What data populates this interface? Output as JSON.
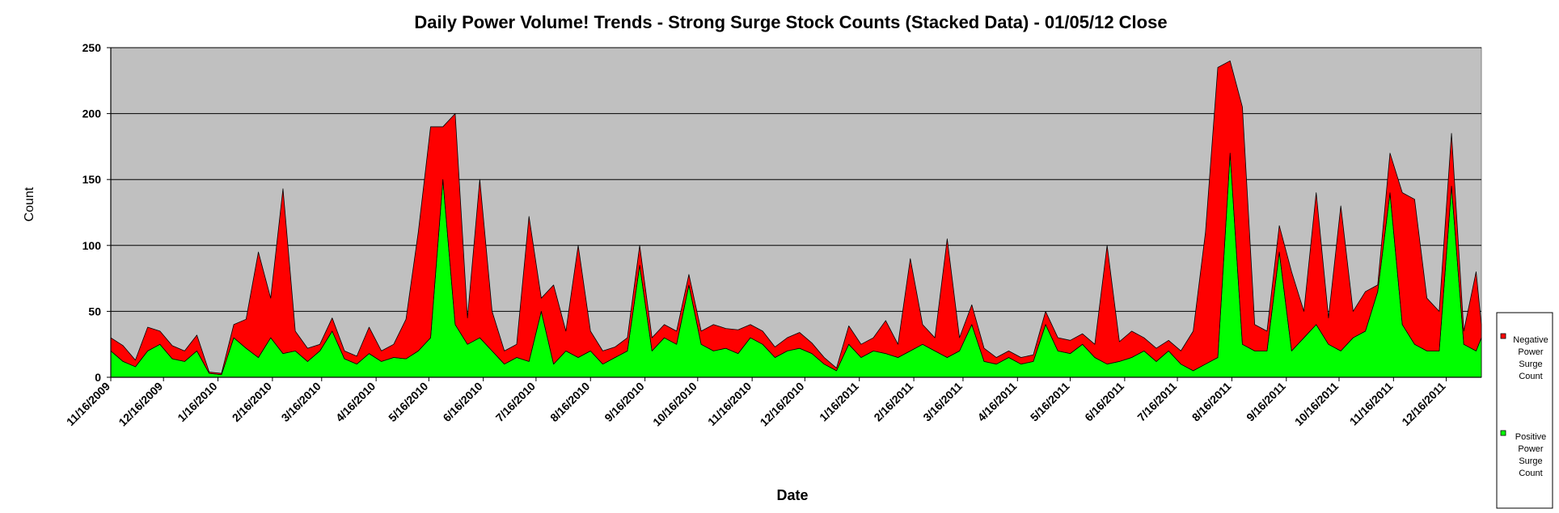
{
  "chart_data": {
    "type": "area",
    "stacked": true,
    "title": "Daily Power Volume! Trends - Strong Surge Stock Counts (Stacked Data) - 01/05/12 Close",
    "xlabel": "Date",
    "ylabel": "Count",
    "ylim": [
      0,
      250
    ],
    "yticks": [
      0,
      50,
      100,
      150,
      200,
      250
    ],
    "xlim": [
      "2009-11-16",
      "2012-01-05"
    ],
    "xticks": [
      "11/16/2009",
      "12/16/2009",
      "1/16/2010",
      "2/16/2010",
      "3/16/2010",
      "4/16/2010",
      "5/16/2010",
      "6/16/2010",
      "7/16/2010",
      "8/16/2010",
      "9/16/2010",
      "10/16/2010",
      "11/16/2010",
      "12/16/2010",
      "1/16/2011",
      "2/16/2011",
      "3/16/2011",
      "4/16/2011",
      "5/16/2011",
      "6/16/2011",
      "7/16/2011",
      "8/16/2011",
      "9/16/2011",
      "10/16/2011",
      "11/16/2011",
      "12/16/2011"
    ],
    "grid": true,
    "legend_position": "right",
    "background_color": "#c0c0c0",
    "series": [
      {
        "name": "Positive Power Surge Count",
        "color": "#00ff00",
        "points": [
          [
            "2009-11-16",
            20
          ],
          [
            "2009-11-23",
            12
          ],
          [
            "2009-11-30",
            8
          ],
          [
            "2009-12-07",
            20
          ],
          [
            "2009-12-14",
            25
          ],
          [
            "2009-12-21",
            14
          ],
          [
            "2009-12-28",
            12
          ],
          [
            "2010-01-04",
            20
          ],
          [
            "2010-01-11",
            3
          ],
          [
            "2010-01-18",
            2
          ],
          [
            "2010-01-25",
            30
          ],
          [
            "2010-02-01",
            22
          ],
          [
            "2010-02-08",
            15
          ],
          [
            "2010-02-15",
            30
          ],
          [
            "2010-02-22",
            18
          ],
          [
            "2010-03-01",
            20
          ],
          [
            "2010-03-08",
            12
          ],
          [
            "2010-03-15",
            20
          ],
          [
            "2010-03-22",
            35
          ],
          [
            "2010-03-29",
            14
          ],
          [
            "2010-04-05",
            10
          ],
          [
            "2010-04-12",
            18
          ],
          [
            "2010-04-19",
            12
          ],
          [
            "2010-04-26",
            15
          ],
          [
            "2010-05-03",
            14
          ],
          [
            "2010-05-10",
            20
          ],
          [
            "2010-05-17",
            30
          ],
          [
            "2010-05-24",
            150
          ],
          [
            "2010-05-31",
            40
          ],
          [
            "2010-06-07",
            25
          ],
          [
            "2010-06-14",
            30
          ],
          [
            "2010-06-21",
            20
          ],
          [
            "2010-06-28",
            10
          ],
          [
            "2010-07-05",
            15
          ],
          [
            "2010-07-12",
            12
          ],
          [
            "2010-07-19",
            50
          ],
          [
            "2010-07-26",
            10
          ],
          [
            "2010-08-02",
            20
          ],
          [
            "2010-08-09",
            15
          ],
          [
            "2010-08-16",
            20
          ],
          [
            "2010-08-23",
            10
          ],
          [
            "2010-08-30",
            15
          ],
          [
            "2010-09-06",
            20
          ],
          [
            "2010-09-13",
            85
          ],
          [
            "2010-09-20",
            20
          ],
          [
            "2010-09-27",
            30
          ],
          [
            "2010-10-04",
            25
          ],
          [
            "2010-10-11",
            70
          ],
          [
            "2010-10-18",
            25
          ],
          [
            "2010-10-25",
            20
          ],
          [
            "2010-11-01",
            22
          ],
          [
            "2010-11-08",
            18
          ],
          [
            "2010-11-15",
            30
          ],
          [
            "2010-11-22",
            25
          ],
          [
            "2010-11-29",
            15
          ],
          [
            "2010-12-06",
            20
          ],
          [
            "2010-12-13",
            22
          ],
          [
            "2010-12-20",
            18
          ],
          [
            "2010-12-27",
            10
          ],
          [
            "2011-01-03",
            5
          ],
          [
            "2011-01-10",
            25
          ],
          [
            "2011-01-17",
            15
          ],
          [
            "2011-01-24",
            20
          ],
          [
            "2011-01-31",
            18
          ],
          [
            "2011-02-07",
            15
          ],
          [
            "2011-02-14",
            20
          ],
          [
            "2011-02-21",
            25
          ],
          [
            "2011-02-28",
            20
          ],
          [
            "2011-03-07",
            15
          ],
          [
            "2011-03-14",
            20
          ],
          [
            "2011-03-21",
            40
          ],
          [
            "2011-03-28",
            12
          ],
          [
            "2011-04-04",
            10
          ],
          [
            "2011-04-11",
            15
          ],
          [
            "2011-04-18",
            10
          ],
          [
            "2011-04-25",
            12
          ],
          [
            "2011-05-02",
            40
          ],
          [
            "2011-05-09",
            20
          ],
          [
            "2011-05-16",
            18
          ],
          [
            "2011-05-23",
            25
          ],
          [
            "2011-05-30",
            15
          ],
          [
            "2011-06-06",
            10
          ],
          [
            "2011-06-13",
            12
          ],
          [
            "2011-06-20",
            15
          ],
          [
            "2011-06-27",
            20
          ],
          [
            "2011-07-04",
            12
          ],
          [
            "2011-07-11",
            20
          ],
          [
            "2011-07-18",
            10
          ],
          [
            "2011-07-25",
            5
          ],
          [
            "2011-08-01",
            10
          ],
          [
            "2011-08-08",
            15
          ],
          [
            "2011-08-15",
            170
          ],
          [
            "2011-08-22",
            25
          ],
          [
            "2011-08-29",
            20
          ],
          [
            "2011-09-05",
            20
          ],
          [
            "2011-09-12",
            95
          ],
          [
            "2011-09-19",
            20
          ],
          [
            "2011-09-26",
            30
          ],
          [
            "2011-10-03",
            40
          ],
          [
            "2011-10-10",
            25
          ],
          [
            "2011-10-17",
            20
          ],
          [
            "2011-10-24",
            30
          ],
          [
            "2011-10-31",
            35
          ],
          [
            "2011-11-07",
            65
          ],
          [
            "2011-11-14",
            140
          ],
          [
            "2011-11-21",
            40
          ],
          [
            "2011-11-28",
            25
          ],
          [
            "2011-12-05",
            20
          ],
          [
            "2011-12-12",
            20
          ],
          [
            "2011-12-19",
            145
          ],
          [
            "2011-12-26",
            25
          ],
          [
            "2012-01-02",
            20
          ],
          [
            "2012-01-05",
            30
          ]
        ]
      },
      {
        "name": "Negative Power Surge Count",
        "color": "#ff0000",
        "points": [
          [
            "2009-11-16",
            10
          ],
          [
            "2009-11-23",
            12
          ],
          [
            "2009-11-30",
            5
          ],
          [
            "2009-12-07",
            18
          ],
          [
            "2009-12-14",
            10
          ],
          [
            "2009-12-21",
            10
          ],
          [
            "2009-12-28",
            8
          ],
          [
            "2010-01-04",
            12
          ],
          [
            "2010-01-11",
            1
          ],
          [
            "2010-01-18",
            1
          ],
          [
            "2010-01-25",
            10
          ],
          [
            "2010-02-01",
            22
          ],
          [
            "2010-02-08",
            80
          ],
          [
            "2010-02-15",
            30
          ],
          [
            "2010-02-22",
            125
          ],
          [
            "2010-03-01",
            15
          ],
          [
            "2010-03-08",
            10
          ],
          [
            "2010-03-15",
            5
          ],
          [
            "2010-03-22",
            10
          ],
          [
            "2010-03-29",
            6
          ],
          [
            "2010-04-05",
            6
          ],
          [
            "2010-04-12",
            20
          ],
          [
            "2010-04-19",
            8
          ],
          [
            "2010-04-26",
            10
          ],
          [
            "2010-05-03",
            30
          ],
          [
            "2010-05-10",
            90
          ],
          [
            "2010-05-17",
            160
          ],
          [
            "2010-05-24",
            40
          ],
          [
            "2010-05-31",
            160
          ],
          [
            "2010-06-07",
            20
          ],
          [
            "2010-06-14",
            120
          ],
          [
            "2010-06-21",
            30
          ],
          [
            "2010-06-28",
            10
          ],
          [
            "2010-07-05",
            10
          ],
          [
            "2010-07-12",
            110
          ],
          [
            "2010-07-19",
            10
          ],
          [
            "2010-07-26",
            60
          ],
          [
            "2010-08-02",
            15
          ],
          [
            "2010-08-09",
            85
          ],
          [
            "2010-08-16",
            15
          ],
          [
            "2010-08-23",
            10
          ],
          [
            "2010-08-30",
            8
          ],
          [
            "2010-09-06",
            10
          ],
          [
            "2010-09-13",
            15
          ],
          [
            "2010-09-20",
            10
          ],
          [
            "2010-09-27",
            10
          ],
          [
            "2010-10-04",
            10
          ],
          [
            "2010-10-11",
            8
          ],
          [
            "2010-10-18",
            10
          ],
          [
            "2010-10-25",
            20
          ],
          [
            "2010-11-01",
            15
          ],
          [
            "2010-11-08",
            18
          ],
          [
            "2010-11-15",
            10
          ],
          [
            "2010-11-22",
            10
          ],
          [
            "2010-11-29",
            8
          ],
          [
            "2010-12-06",
            10
          ],
          [
            "2010-12-13",
            12
          ],
          [
            "2010-12-20",
            8
          ],
          [
            "2010-12-27",
            5
          ],
          [
            "2011-01-03",
            2
          ],
          [
            "2011-01-10",
            14
          ],
          [
            "2011-01-17",
            10
          ],
          [
            "2011-01-24",
            10
          ],
          [
            "2011-01-31",
            25
          ],
          [
            "2011-02-07",
            10
          ],
          [
            "2011-02-14",
            70
          ],
          [
            "2011-02-21",
            15
          ],
          [
            "2011-02-28",
            10
          ],
          [
            "2011-03-07",
            90
          ],
          [
            "2011-03-14",
            10
          ],
          [
            "2011-03-21",
            15
          ],
          [
            "2011-03-28",
            10
          ],
          [
            "2011-04-04",
            5
          ],
          [
            "2011-04-11",
            5
          ],
          [
            "2011-04-18",
            5
          ],
          [
            "2011-04-25",
            5
          ],
          [
            "2011-05-02",
            10
          ],
          [
            "2011-05-09",
            10
          ],
          [
            "2011-05-16",
            10
          ],
          [
            "2011-05-23",
            8
          ],
          [
            "2011-05-30",
            10
          ],
          [
            "2011-06-06",
            90
          ],
          [
            "2011-06-13",
            15
          ],
          [
            "2011-06-20",
            20
          ],
          [
            "2011-06-27",
            10
          ],
          [
            "2011-07-04",
            10
          ],
          [
            "2011-07-11",
            8
          ],
          [
            "2011-07-18",
            10
          ],
          [
            "2011-07-25",
            30
          ],
          [
            "2011-08-01",
            100
          ],
          [
            "2011-08-08",
            220
          ],
          [
            "2011-08-15",
            70
          ],
          [
            "2011-08-22",
            180
          ],
          [
            "2011-08-29",
            20
          ],
          [
            "2011-09-05",
            15
          ],
          [
            "2011-09-12",
            20
          ],
          [
            "2011-09-19",
            60
          ],
          [
            "2011-09-26",
            20
          ],
          [
            "2011-10-03",
            100
          ],
          [
            "2011-10-10",
            20
          ],
          [
            "2011-10-17",
            110
          ],
          [
            "2011-10-24",
            20
          ],
          [
            "2011-10-31",
            30
          ],
          [
            "2011-11-07",
            5
          ],
          [
            "2011-11-14",
            30
          ],
          [
            "2011-11-21",
            100
          ],
          [
            "2011-11-28",
            110
          ],
          [
            "2011-12-05",
            40
          ],
          [
            "2011-12-12",
            30
          ],
          [
            "2011-12-19",
            40
          ],
          [
            "2011-12-26",
            10
          ],
          [
            "2012-01-02",
            60
          ],
          [
            "2012-01-05",
            10
          ]
        ]
      }
    ]
  }
}
